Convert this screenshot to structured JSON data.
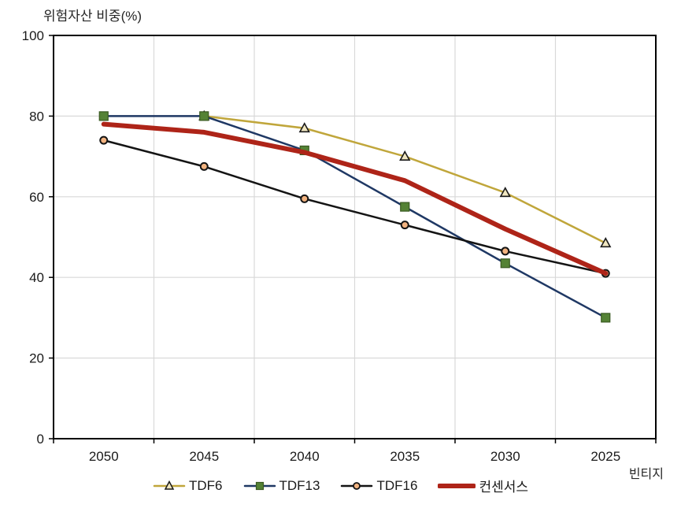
{
  "title": "위험자산 비중(%)",
  "x_axis_label": "빈티지",
  "chart_data": {
    "type": "line",
    "title": "위험자산 비중(%)",
    "xlabel": "빈티지",
    "ylabel": "위험자산 비중(%)",
    "categories": [
      "2050",
      "2045",
      "2040",
      "2035",
      "2030",
      "2025"
    ],
    "x_axis_reversed_note": "vintage years shown descending left-to-right",
    "ylim": [
      0,
      100
    ],
    "yticks": [
      0,
      20,
      40,
      60,
      80,
      100
    ],
    "grid": true,
    "legend_position": "bottom",
    "series": [
      {
        "name": "TDF6",
        "values": [
          null,
          80,
          77,
          70,
          61,
          48.5
        ],
        "color": "#C0A63B",
        "line_width": 2.5,
        "marker": "triangle",
        "marker_fill": "#F0E6C0",
        "marker_stroke": "#1a1a1a"
      },
      {
        "name": "TDF13",
        "values": [
          80,
          80,
          71.5,
          57.5,
          43.5,
          30
        ],
        "color": "#1F3864",
        "line_width": 2.5,
        "marker": "square",
        "marker_fill": "#548235",
        "marker_stroke": "#3A5A22"
      },
      {
        "name": "TDF16",
        "values": [
          74,
          67.5,
          59.5,
          53,
          46.5,
          41
        ],
        "color": "#141414",
        "line_width": 2.5,
        "marker": "circle",
        "marker_fill": "#F2B380",
        "marker_stroke": "#141414"
      },
      {
        "name": "컨센서스",
        "values": [
          78,
          76,
          71,
          64,
          52,
          41
        ],
        "color": "#AE2418",
        "line_width": 6,
        "marker": "none",
        "marker_fill": "",
        "marker_stroke": ""
      }
    ]
  },
  "colors": {
    "plot_border": "#000000",
    "gridline": "#D9D9D9",
    "tick_label": "#1a1a1a",
    "background": "#ffffff"
  }
}
